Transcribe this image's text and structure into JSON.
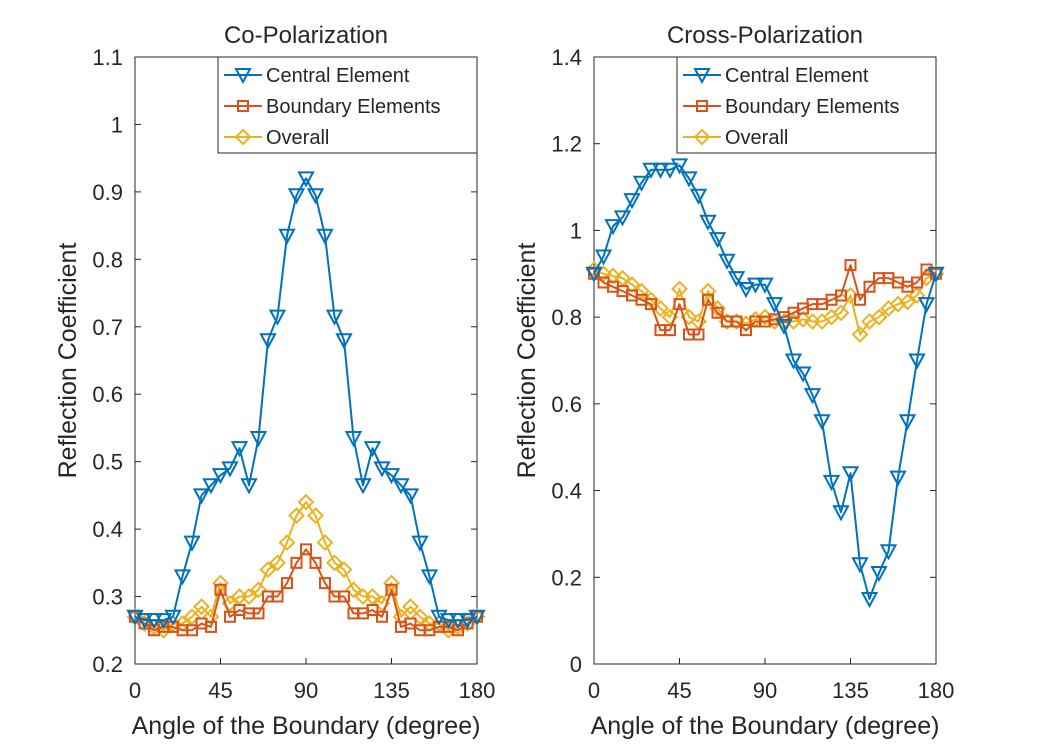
{
  "chart_data": [
    {
      "type": "line",
      "title": "Co-Polarization",
      "xlabel": "Angle of the Boundary (degree)",
      "ylabel": "Reflection Coefficient",
      "xlim": [
        0,
        180
      ],
      "ylim": [
        0.2,
        1.1
      ],
      "xticks": [
        0,
        45,
        90,
        135,
        180
      ],
      "yticks": [
        0.2,
        0.3,
        0.4,
        0.5,
        0.6,
        0.7,
        0.8,
        0.9,
        1,
        1.1
      ],
      "xtick_labels": [
        "0",
        "45",
        "90",
        "135",
        "180"
      ],
      "ytick_labels": [
        "0.2",
        "0.3",
        "0.4",
        "0.5",
        "0.6",
        "0.7",
        "0.8",
        "0.9",
        "1",
        "1.1"
      ],
      "grid": false,
      "legend_position": "top-right",
      "x": [
        0,
        5,
        10,
        15,
        20,
        25,
        30,
        35,
        40,
        45,
        50,
        55,
        60,
        65,
        70,
        75,
        80,
        85,
        90,
        95,
        100,
        105,
        110,
        115,
        120,
        125,
        130,
        135,
        140,
        145,
        150,
        155,
        160,
        165,
        170,
        175,
        180
      ],
      "series": [
        {
          "name": "Central Element",
          "color": "#0072BD",
          "marker": "triangle-down",
          "values": [
            0.27,
            0.265,
            0.265,
            0.265,
            0.27,
            0.33,
            0.38,
            0.45,
            0.465,
            0.48,
            0.49,
            0.52,
            0.465,
            0.535,
            0.68,
            0.715,
            0.835,
            0.895,
            0.92,
            0.895,
            0.835,
            0.715,
            0.68,
            0.535,
            0.465,
            0.52,
            0.49,
            0.48,
            0.465,
            0.45,
            0.38,
            0.33,
            0.27,
            0.265,
            0.265,
            0.265,
            0.27
          ]
        },
        {
          "name": "Boundary Elements",
          "color": "#D95319",
          "marker": "square",
          "values": [
            0.27,
            0.26,
            0.25,
            0.255,
            0.255,
            0.25,
            0.25,
            0.26,
            0.255,
            0.31,
            0.27,
            0.28,
            0.275,
            0.275,
            0.3,
            0.3,
            0.32,
            0.35,
            0.37,
            0.35,
            0.32,
            0.3,
            0.3,
            0.275,
            0.275,
            0.28,
            0.27,
            0.31,
            0.255,
            0.26,
            0.25,
            0.25,
            0.255,
            0.255,
            0.25,
            0.26,
            0.27
          ]
        },
        {
          "name": "Overall",
          "color": "#EDB120",
          "marker": "diamond",
          "values": [
            0.27,
            0.26,
            0.255,
            0.25,
            0.26,
            0.26,
            0.27,
            0.285,
            0.27,
            0.32,
            0.29,
            0.3,
            0.3,
            0.31,
            0.34,
            0.35,
            0.38,
            0.42,
            0.44,
            0.42,
            0.38,
            0.35,
            0.34,
            0.31,
            0.3,
            0.3,
            0.29,
            0.32,
            0.27,
            0.285,
            0.27,
            0.26,
            0.26,
            0.25,
            0.255,
            0.26,
            0.27
          ]
        }
      ]
    },
    {
      "type": "line",
      "title": "Cross-Polarization",
      "xlabel": "Angle of the Boundary (degree)",
      "ylabel": "Reflection Coefficient",
      "xlim": [
        0,
        180
      ],
      "ylim": [
        0,
        1.4
      ],
      "xticks": [
        0,
        45,
        90,
        135,
        180
      ],
      "yticks": [
        0,
        0.2,
        0.4,
        0.6,
        0.8,
        1,
        1.2,
        1.4
      ],
      "xtick_labels": [
        "0",
        "45",
        "90",
        "135",
        "180"
      ],
      "ytick_labels": [
        "0",
        "0.2",
        "0.4",
        "0.6",
        "0.8",
        "1",
        "1.2",
        "1.4"
      ],
      "grid": false,
      "legend_position": "top-right",
      "x": [
        0,
        5,
        10,
        15,
        20,
        25,
        30,
        35,
        40,
        45,
        50,
        55,
        60,
        65,
        70,
        75,
        80,
        85,
        90,
        95,
        100,
        105,
        110,
        115,
        120,
        125,
        130,
        135,
        140,
        145,
        150,
        155,
        160,
        165,
        170,
        175,
        180
      ],
      "series": [
        {
          "name": "Central Element",
          "color": "#0072BD",
          "marker": "triangle-down",
          "values": [
            0.9,
            0.94,
            1.01,
            1.03,
            1.07,
            1.11,
            1.14,
            1.14,
            1.14,
            1.15,
            1.12,
            1.08,
            1.02,
            0.98,
            0.93,
            0.89,
            0.865,
            0.875,
            0.875,
            0.83,
            0.78,
            0.7,
            0.67,
            0.62,
            0.56,
            0.42,
            0.35,
            0.44,
            0.23,
            0.15,
            0.21,
            0.26,
            0.43,
            0.56,
            0.7,
            0.83,
            0.9
          ]
        },
        {
          "name": "Boundary Elements",
          "color": "#D95319",
          "marker": "square",
          "values": [
            0.9,
            0.88,
            0.87,
            0.86,
            0.85,
            0.84,
            0.83,
            0.77,
            0.77,
            0.83,
            0.76,
            0.76,
            0.84,
            0.81,
            0.79,
            0.79,
            0.77,
            0.79,
            0.79,
            0.795,
            0.8,
            0.81,
            0.82,
            0.83,
            0.83,
            0.84,
            0.85,
            0.92,
            0.84,
            0.87,
            0.89,
            0.89,
            0.88,
            0.87,
            0.88,
            0.91,
            0.9
          ]
        },
        {
          "name": "Overall",
          "color": "#EDB120",
          "marker": "diamond",
          "values": [
            0.91,
            0.9,
            0.895,
            0.89,
            0.875,
            0.86,
            0.84,
            0.82,
            0.8,
            0.865,
            0.8,
            0.79,
            0.86,
            0.82,
            0.79,
            0.79,
            0.785,
            0.795,
            0.8,
            0.79,
            0.79,
            0.79,
            0.795,
            0.79,
            0.79,
            0.8,
            0.81,
            0.85,
            0.76,
            0.79,
            0.8,
            0.82,
            0.83,
            0.835,
            0.85,
            0.89,
            0.9
          ]
        }
      ]
    }
  ]
}
